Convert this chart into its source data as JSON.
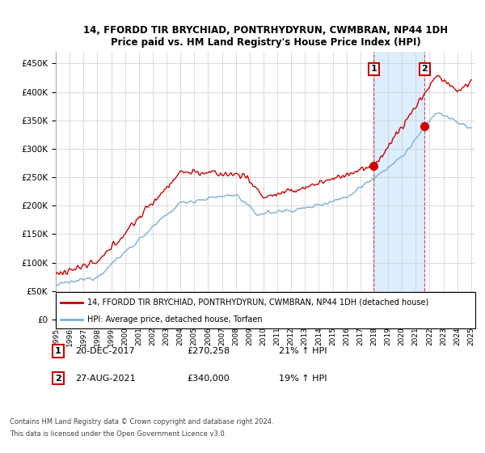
{
  "title": "14, FFORDD TIR BRYCHIAD, PONTRHYDYRUN, CWMBRAN, NP44 1DH",
  "subtitle": "Price paid vs. HM Land Registry's House Price Index (HPI)",
  "ylim": [
    0,
    470000
  ],
  "yticks": [
    0,
    50000,
    100000,
    150000,
    200000,
    250000,
    300000,
    350000,
    400000,
    450000
  ],
  "ytick_labels": [
    "£0",
    "£50K",
    "£100K",
    "£150K",
    "£200K",
    "£250K",
    "£300K",
    "£350K",
    "£400K",
    "£450K"
  ],
  "sale1_x": 2017.96,
  "sale1_price": 270258,
  "sale1_date_str": "20-DEC-2017",
  "sale1_price_str": "£270,258",
  "sale1_pct": "21% ↑ HPI",
  "sale2_x": 2021.65,
  "sale2_price": 340000,
  "sale2_date_str": "27-AUG-2021",
  "sale2_price_str": "£340,000",
  "sale2_pct": "19% ↑ HPI",
  "line1_color": "#cc0000",
  "line2_color": "#7bafd4",
  "shade_color": "#ddeeff",
  "legend1_label": "14, FFORDD TIR BRYCHIAD, PONTRHYDYRUN, CWMBRAN, NP44 1DH (detached house)",
  "legend2_label": "HPI: Average price, detached house, Torfaen",
  "footer1": "Contains HM Land Registry data © Crown copyright and database right 2024.",
  "footer2": "This data is licensed under the Open Government Licence v3.0.",
  "background_color": "#ffffff",
  "grid_color": "#cccccc"
}
